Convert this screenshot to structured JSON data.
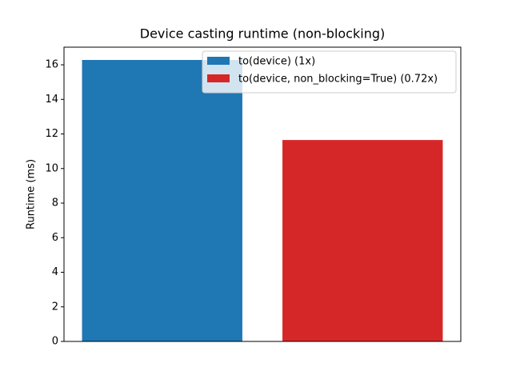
{
  "chart_data": {
    "type": "bar",
    "title": "Device casting runtime (non-blocking)",
    "y_label": "Runtime (ms)",
    "series": [
      {
        "name": "to(device) (1x)",
        "color": "#1f77b4",
        "values": [
          16.28
        ]
      },
      {
        "name": "to(device, non_blocking=True) (0.72x)",
        "color": "#d62728",
        "values": [
          11.65
        ]
      }
    ],
    "ylim": [
      0,
      17.02
    ],
    "yticks": [
      0,
      2,
      4,
      6,
      8,
      10,
      12,
      14,
      16
    ],
    "legend": "upper right"
  }
}
